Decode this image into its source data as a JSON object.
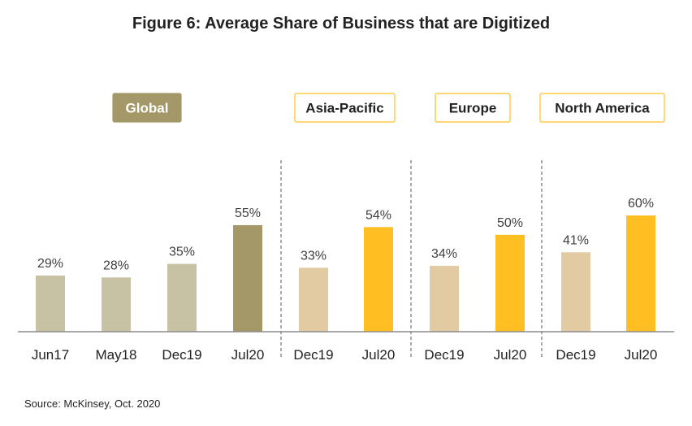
{
  "chart_data": {
    "type": "bar",
    "title": "Figure 6: Average Share of Business that are Digitized",
    "source": "Source: McKinsey, Oct. 2020",
    "unit_suffix": "%",
    "ylim": [
      0,
      60
    ],
    "grid": false,
    "legend": "none",
    "groups": [
      {
        "name": "Global",
        "badge_style": "filled",
        "categories": [
          "Jun17",
          "May18",
          "Dec19",
          "Jul20"
        ],
        "values": [
          29,
          28,
          35,
          55
        ],
        "colors": [
          "#c8c2a4",
          "#c8c2a4",
          "#c8c2a4",
          "#a49868"
        ]
      },
      {
        "name": "Asia-Pacific",
        "badge_style": "outline",
        "categories": [
          "Dec19",
          "Jul20"
        ],
        "values": [
          33,
          54
        ],
        "colors": [
          "#e2cba2",
          "#ffbf22"
        ]
      },
      {
        "name": "Europe",
        "badge_style": "outline",
        "categories": [
          "Dec19",
          "Jul20"
        ],
        "values": [
          34,
          50
        ],
        "colors": [
          "#e2cba2",
          "#ffbf22"
        ]
      },
      {
        "name": "North America",
        "badge_style": "outline",
        "categories": [
          "Dec19",
          "Jul20"
        ],
        "values": [
          41,
          60
        ],
        "colors": [
          "#e2cba2",
          "#ffbf22"
        ]
      }
    ]
  },
  "colors": {
    "badge_fill": "#a49868",
    "badge_outline": "#ffbf22",
    "axis": "#8c8c8c",
    "divider": "#555555"
  }
}
